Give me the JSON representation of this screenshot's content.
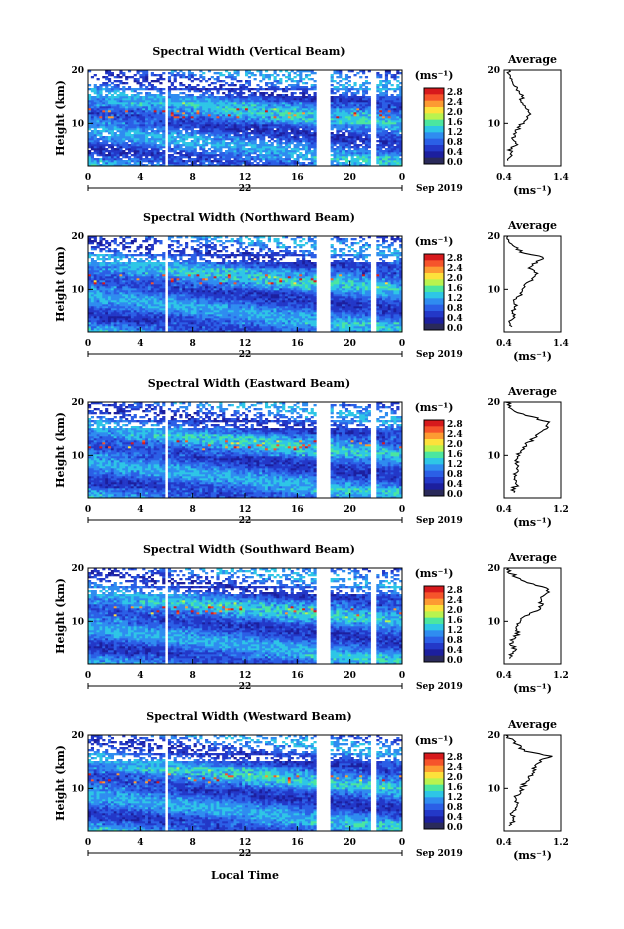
{
  "date_label": "Sep 2019",
  "day_label": "22",
  "x_axis_label": "Local Time",
  "y_axis_label": "Height (km)",
  "unit_label": "(ms⁻¹)",
  "avg_title": "Average",
  "avg_xlabel": "(ms⁻¹)",
  "colorbar_ticks": [
    "2.8",
    "2.4",
    "2.0",
    "1.6",
    "1.2",
    "0.8",
    "0.4",
    "0.0"
  ],
  "colorbar_colors": [
    "#d7191c",
    "#f6542b",
    "#fd9b32",
    "#fde13b",
    "#b9f34f",
    "#4be6a0",
    "#2ec6e6",
    "#2f8cf0",
    "#2b5fe6",
    "#2338c8",
    "#1c1f9e",
    "#2a2a5a"
  ],
  "chart_data": [
    {
      "type": "heatmap",
      "title": "Spectral Width (Vertical Beam)",
      "xlabel": "",
      "ylabel": "Height (km)",
      "xlim": [
        0,
        24
      ],
      "ylim": [
        2,
        20
      ],
      "x_ticks": [
        "0",
        "4",
        "8",
        "12",
        "16",
        "20",
        "0"
      ],
      "y_ticks": [
        "20",
        "10"
      ],
      "colorbar_range": [
        0.0,
        3.0
      ],
      "data_gaps_hours": [
        [
          5.8,
          6.0
        ],
        [
          17.4,
          18.6
        ],
        [
          21.7,
          22.0
        ]
      ],
      "average_profile": {
        "xlim": [
          0.4,
          1.4
        ],
        "x_ticks": [
          "0.4",
          "1.4"
        ],
        "y_ticks": [
          "20",
          "10"
        ],
        "height_km": [
          3,
          4,
          5,
          6,
          7,
          8,
          9,
          10,
          11,
          12,
          13,
          14,
          15,
          16,
          17,
          18,
          19,
          20
        ],
        "width_ms": [
          0.45,
          0.55,
          0.5,
          0.6,
          0.55,
          0.6,
          0.65,
          0.72,
          0.8,
          0.85,
          0.75,
          0.7,
          0.72,
          0.65,
          0.6,
          0.55,
          0.5,
          0.48
        ]
      }
    },
    {
      "type": "heatmap",
      "title": "Spectral Width (Northward Beam)",
      "xlabel": "",
      "ylabel": "Height (km)",
      "xlim": [
        0,
        24
      ],
      "ylim": [
        2,
        20
      ],
      "x_ticks": [
        "0",
        "4",
        "8",
        "12",
        "16",
        "20",
        "0"
      ],
      "y_ticks": [
        "20",
        "10"
      ],
      "colorbar_range": [
        0.0,
        3.0
      ],
      "data_gaps_hours": [
        [
          5.8,
          6.0
        ],
        [
          17.4,
          18.6
        ],
        [
          21.7,
          22.0
        ]
      ],
      "average_profile": {
        "xlim": [
          0.4,
          1.4
        ],
        "x_ticks": [
          "0.4",
          "1.4"
        ],
        "y_ticks": [
          "20",
          "10"
        ],
        "height_km": [
          3,
          4,
          5,
          6,
          7,
          8,
          9,
          10,
          11,
          12,
          13,
          14,
          15,
          16,
          17,
          18,
          19,
          20
        ],
        "width_ms": [
          0.55,
          0.5,
          0.6,
          0.55,
          0.62,
          0.6,
          0.7,
          0.75,
          0.8,
          0.9,
          1.0,
          0.85,
          0.95,
          1.1,
          0.7,
          0.6,
          0.5,
          0.45
        ]
      }
    },
    {
      "type": "heatmap",
      "title": "Spectral Width (Eastward Beam)",
      "xlabel": "",
      "ylabel": "Height (km)",
      "xlim": [
        0,
        24
      ],
      "ylim": [
        2,
        20
      ],
      "x_ticks": [
        "0",
        "4",
        "8",
        "12",
        "16",
        "20",
        "0"
      ],
      "y_ticks": [
        "20",
        "10"
      ],
      "colorbar_range": [
        0.0,
        3.0
      ],
      "data_gaps_hours": [
        [
          5.8,
          6.0
        ],
        [
          17.4,
          18.6
        ],
        [
          21.7,
          22.0
        ]
      ],
      "average_profile": {
        "xlim": [
          0.4,
          1.2
        ],
        "x_ticks": [
          "0.4",
          "1.2"
        ],
        "y_ticks": [
          "20",
          "10"
        ],
        "height_km": [
          3,
          4,
          5,
          6,
          7,
          8,
          9,
          10,
          11,
          12,
          13,
          14,
          15,
          16,
          17,
          18,
          19,
          20
        ],
        "width_ms": [
          0.5,
          0.55,
          0.6,
          0.55,
          0.6,
          0.62,
          0.55,
          0.58,
          0.65,
          0.7,
          0.8,
          0.9,
          1.0,
          1.05,
          0.85,
          0.6,
          0.5,
          0.45
        ]
      }
    },
    {
      "type": "heatmap",
      "title": "Spectral Width (Southward Beam)",
      "xlabel": "",
      "ylabel": "Height (km)",
      "xlim": [
        0,
        24
      ],
      "ylim": [
        2,
        20
      ],
      "x_ticks": [
        "0",
        "4",
        "8",
        "12",
        "16",
        "20",
        "0"
      ],
      "y_ticks": [
        "20",
        "10"
      ],
      "colorbar_range": [
        0.0,
        3.0
      ],
      "data_gaps_hours": [
        [
          5.8,
          6.0
        ],
        [
          17.4,
          18.6
        ],
        [
          21.7,
          22.0
        ]
      ],
      "average_profile": {
        "xlim": [
          0.4,
          1.2
        ],
        "x_ticks": [
          "0.4",
          "1.2"
        ],
        "y_ticks": [
          "20",
          "10"
        ],
        "height_km": [
          3,
          4,
          5,
          6,
          7,
          8,
          9,
          10,
          11,
          12,
          13,
          14,
          15,
          16,
          17,
          18,
          19,
          20
        ],
        "width_ms": [
          0.48,
          0.5,
          0.55,
          0.5,
          0.55,
          0.6,
          0.58,
          0.62,
          0.7,
          0.85,
          0.95,
          0.9,
          1.0,
          1.05,
          0.8,
          0.6,
          0.5,
          0.45
        ]
      }
    },
    {
      "type": "heatmap",
      "title": "Spectral Width (Westward Beam)",
      "xlabel": "Local Time",
      "ylabel": "Height (km)",
      "xlim": [
        0,
        24
      ],
      "ylim": [
        2,
        20
      ],
      "x_ticks": [
        "0",
        "4",
        "8",
        "12",
        "16",
        "20",
        "0"
      ],
      "y_ticks": [
        "20",
        "10"
      ],
      "colorbar_range": [
        0.0,
        3.0
      ],
      "data_gaps_hours": [
        [
          5.8,
          6.0
        ],
        [
          17.4,
          18.6
        ],
        [
          21.7,
          22.0
        ]
      ],
      "average_profile": {
        "xlim": [
          0.4,
          1.2
        ],
        "x_ticks": [
          "0.4",
          "1.2"
        ],
        "y_ticks": [
          "20",
          "10"
        ],
        "height_km": [
          3,
          4,
          5,
          6,
          7,
          8,
          9,
          10,
          11,
          12,
          13,
          14,
          15,
          16,
          17,
          18,
          19,
          20
        ],
        "width_ms": [
          0.5,
          0.55,
          0.5,
          0.55,
          0.6,
          0.55,
          0.6,
          0.65,
          0.7,
          0.75,
          0.8,
          0.85,
          0.9,
          1.05,
          0.7,
          0.6,
          0.5,
          0.45
        ]
      }
    }
  ]
}
